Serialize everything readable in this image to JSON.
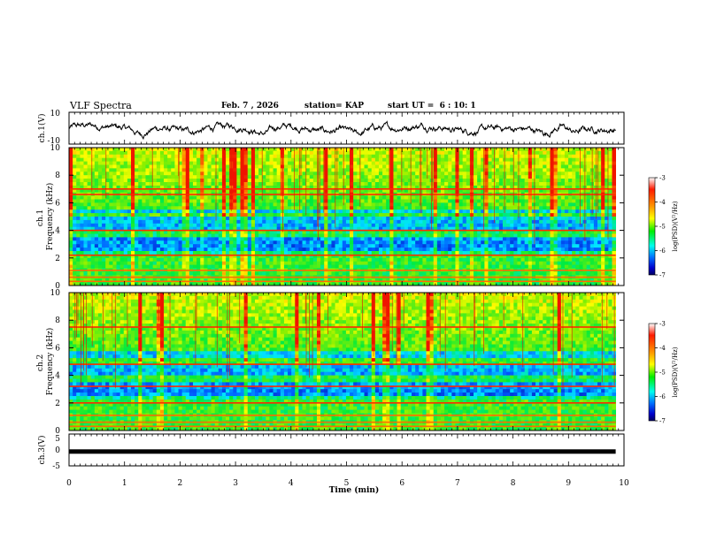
{
  "header": {
    "title": "VLF Spectra",
    "date": "Feb. 7 , 2026",
    "station": "station= KAP",
    "start": "start UT =  6 : 10: 1"
  },
  "chart_data": [
    {
      "type": "line",
      "name": "ch1-waveform",
      "ylabel": "ch.1(V)",
      "ylim": [
        -10,
        10
      ],
      "yticks": [
        "10",
        "-10"
      ],
      "xlim": [
        0,
        10
      ],
      "trace_span_min": [
        0,
        9.85
      ],
      "description_values": "voltage oscillating roughly between -5 and 5 V with negative dips near 1.3, 3.5, 5.2, 8.6, 9.1 min"
    },
    {
      "type": "heatmap",
      "name": "ch1-spectrogram",
      "ylabel": "ch.1\nFrequency (kHz)",
      "ylim": [
        0,
        10
      ],
      "yticks": [
        "0",
        "2",
        "4",
        "6",
        "8",
        "10"
      ],
      "xlim": [
        0,
        10
      ],
      "data_span_min": [
        0,
        9.85
      ],
      "strong_lines_khz": [
        0.3,
        0.6,
        1.1,
        2.2,
        4.0,
        6.6,
        7.0
      ],
      "quiet_bands_khz": [
        [
          2.5,
          3.5
        ],
        [
          3.9,
          5.0
        ],
        [
          5.2,
          5.6
        ]
      ]
    },
    {
      "type": "heatmap",
      "name": "ch2-spectrogram",
      "ylabel": "ch.2\nFrequency (kHz)",
      "ylim": [
        0,
        10
      ],
      "yticks": [
        "0",
        "2",
        "4",
        "6",
        "8",
        "10"
      ],
      "xlim": [
        0,
        10
      ],
      "data_span_min": [
        0,
        9.85
      ],
      "strong_lines_khz": [
        0.3,
        0.6,
        1.1,
        2.0,
        3.2,
        4.8,
        7.5
      ],
      "quiet_bands_khz": [
        [
          2.4,
          3.6
        ],
        [
          4.0,
          4.7
        ],
        [
          5.2,
          5.8
        ]
      ]
    },
    {
      "type": "line",
      "name": "ch3-waveform",
      "ylabel": "ch.3(V)",
      "ylim": [
        -5,
        5
      ],
      "yticks": [
        "5",
        "0",
        "-5"
      ],
      "xlim": [
        0,
        10
      ],
      "constant_value_v": -0.5,
      "trace_span_min": [
        0,
        9.85
      ]
    }
  ],
  "xaxis": {
    "label": "Time (min)",
    "ticks": [
      "0",
      "1",
      "2",
      "3",
      "4",
      "5",
      "6",
      "7",
      "8",
      "9",
      "10"
    ]
  },
  "colorbar": {
    "label": "log(PSD)(V²/Hz)",
    "range": [
      -7,
      -3
    ],
    "ticks": [
      "-3",
      "-4",
      "-5",
      "-6",
      "-7"
    ]
  }
}
